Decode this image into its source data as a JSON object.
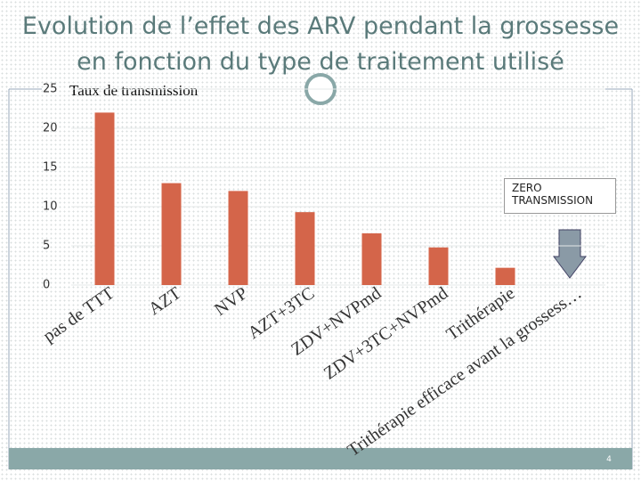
{
  "chart_data": {
    "type": "bar",
    "title": "Evolution de l’effet des ARV pendant la grossesse en fonction du type de traitement utilisé",
    "y_label": "Taux de transmission",
    "categories": [
      "pas de TTT",
      "AZT",
      "NVP",
      "AZT+3TC",
      "ZDV+NVPmd",
      "ZDV+3TC+NVPmd",
      "Trithérapie",
      "Trithérapie efficace avant la grossess…"
    ],
    "values": [
      22,
      13,
      12,
      9.3,
      6.6,
      4.8,
      2.2,
      0
    ],
    "color": "#d4654a",
    "ylim": [
      0,
      25
    ],
    "yticks": [
      0,
      5,
      10,
      15,
      20,
      25
    ],
    "grid": true,
    "annotation": "ZERO TRANSMISSION",
    "page_number": "4"
  }
}
